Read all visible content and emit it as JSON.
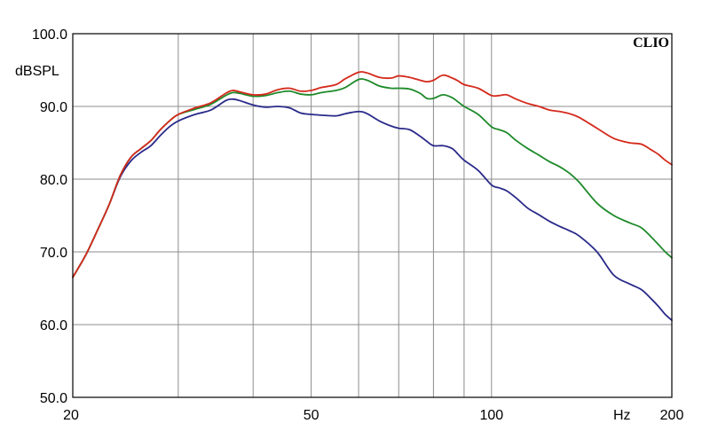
{
  "chart_data": {
    "type": "line",
    "brand": "CLIO",
    "ylabel": "dBSPL",
    "xunit": "Hz",
    "xscale": "log",
    "xlim": [
      20,
      200
    ],
    "ylim": [
      50,
      100
    ],
    "grid": true,
    "x_ticks": [
      20,
      50,
      100,
      200
    ],
    "x_tick_labels": [
      "20",
      "50",
      "100",
      "200"
    ],
    "y_ticks": [
      50,
      60,
      70,
      80,
      90,
      100
    ],
    "y_tick_labels": [
      "50.0",
      "60.0",
      "70.0",
      "80.0",
      "90.0",
      "100.0"
    ],
    "x_grid": [
      30,
      40,
      50,
      60,
      70,
      80,
      90,
      100,
      200
    ],
    "series": [
      {
        "color": "#d42a1c",
        "points": [
          [
            20,
            66.5
          ],
          [
            21,
            69.5
          ],
          [
            22,
            73
          ],
          [
            23,
            76.5
          ],
          [
            24,
            80.5
          ],
          [
            25,
            83
          ],
          [
            26,
            84.2
          ],
          [
            27,
            85.3
          ],
          [
            28,
            86.8
          ],
          [
            29,
            88
          ],
          [
            30,
            88.9
          ],
          [
            32,
            89.8
          ],
          [
            34,
            90.5
          ],
          [
            36,
            91.8
          ],
          [
            37,
            92.2
          ],
          [
            38,
            92
          ],
          [
            40,
            91.6
          ],
          [
            42,
            91.7
          ],
          [
            44,
            92.3
          ],
          [
            46,
            92.5
          ],
          [
            48,
            92.1
          ],
          [
            50,
            92.2
          ],
          [
            52,
            92.6
          ],
          [
            55,
            93
          ],
          [
            57,
            93.8
          ],
          [
            60,
            94.7
          ],
          [
            62,
            94.6
          ],
          [
            65,
            94
          ],
          [
            68,
            93.9
          ],
          [
            70,
            94.2
          ],
          [
            73,
            94
          ],
          [
            76,
            93.6
          ],
          [
            78,
            93.4
          ],
          [
            80,
            93.6
          ],
          [
            83,
            94.3
          ],
          [
            86,
            93.9
          ],
          [
            88,
            93.5
          ],
          [
            90,
            93
          ],
          [
            95,
            92.5
          ],
          [
            100,
            91.5
          ],
          [
            103,
            91.5
          ],
          [
            106,
            91.6
          ],
          [
            110,
            91
          ],
          [
            115,
            90.4
          ],
          [
            120,
            90
          ],
          [
            125,
            89.5
          ],
          [
            130,
            89.3
          ],
          [
            135,
            89
          ],
          [
            140,
            88.5
          ],
          [
            150,
            87
          ],
          [
            160,
            85.6
          ],
          [
            170,
            85
          ],
          [
            178,
            84.8
          ],
          [
            185,
            84
          ],
          [
            190,
            83.4
          ],
          [
            195,
            82.6
          ],
          [
            200,
            82
          ]
        ]
      },
      {
        "color": "#1e8a2a",
        "points": [
          [
            20,
            66.5
          ],
          [
            21,
            69.5
          ],
          [
            22,
            73
          ],
          [
            23,
            76.5
          ],
          [
            24,
            80.5
          ],
          [
            25,
            83
          ],
          [
            26,
            84.2
          ],
          [
            27,
            85.3
          ],
          [
            28,
            86.8
          ],
          [
            29,
            88
          ],
          [
            30,
            88.9
          ],
          [
            32,
            89.6
          ],
          [
            34,
            90.3
          ],
          [
            36,
            91.5
          ],
          [
            37,
            91.9
          ],
          [
            38,
            91.8
          ],
          [
            40,
            91.4
          ],
          [
            42,
            91.5
          ],
          [
            44,
            91.9
          ],
          [
            46,
            92.1
          ],
          [
            48,
            91.7
          ],
          [
            50,
            91.6
          ],
          [
            52,
            91.9
          ],
          [
            55,
            92.2
          ],
          [
            57,
            92.6
          ],
          [
            60,
            93.7
          ],
          [
            62,
            93.6
          ],
          [
            65,
            92.8
          ],
          [
            68,
            92.5
          ],
          [
            70,
            92.5
          ],
          [
            73,
            92.4
          ],
          [
            76,
            91.8
          ],
          [
            78,
            91.1
          ],
          [
            80,
            91.1
          ],
          [
            83,
            91.6
          ],
          [
            86,
            91.2
          ],
          [
            88,
            90.6
          ],
          [
            90,
            90
          ],
          [
            95,
            88.9
          ],
          [
            100,
            87.2
          ],
          [
            103,
            86.8
          ],
          [
            106,
            86.4
          ],
          [
            110,
            85.3
          ],
          [
            115,
            84.2
          ],
          [
            120,
            83.3
          ],
          [
            125,
            82.4
          ],
          [
            130,
            81.7
          ],
          [
            135,
            80.8
          ],
          [
            140,
            79.6
          ],
          [
            150,
            76.7
          ],
          [
            160,
            75
          ],
          [
            170,
            74
          ],
          [
            178,
            73.3
          ],
          [
            185,
            72
          ],
          [
            190,
            71
          ],
          [
            195,
            70
          ],
          [
            200,
            69.2
          ]
        ]
      },
      {
        "color": "#2a2a8a",
        "points": [
          [
            20,
            66.5
          ],
          [
            21,
            69.5
          ],
          [
            22,
            73
          ],
          [
            23,
            76.5
          ],
          [
            24,
            80.3
          ],
          [
            25,
            82.5
          ],
          [
            26,
            83.7
          ],
          [
            27,
            84.6
          ],
          [
            28,
            86
          ],
          [
            29,
            87.2
          ],
          [
            30,
            88
          ],
          [
            32,
            88.9
          ],
          [
            34,
            89.5
          ],
          [
            36,
            90.8
          ],
          [
            37,
            91
          ],
          [
            38,
            90.8
          ],
          [
            40,
            90.2
          ],
          [
            42,
            89.9
          ],
          [
            44,
            90
          ],
          [
            46,
            89.8
          ],
          [
            48,
            89.1
          ],
          [
            50,
            88.9
          ],
          [
            52,
            88.8
          ],
          [
            55,
            88.7
          ],
          [
            57,
            89
          ],
          [
            60,
            89.3
          ],
          [
            62,
            89
          ],
          [
            65,
            88
          ],
          [
            68,
            87.3
          ],
          [
            70,
            87
          ],
          [
            73,
            86.8
          ],
          [
            76,
            85.9
          ],
          [
            78,
            85.2
          ],
          [
            80,
            84.6
          ],
          [
            83,
            84.6
          ],
          [
            86,
            84.2
          ],
          [
            88,
            83.4
          ],
          [
            90,
            82.6
          ],
          [
            95,
            81.2
          ],
          [
            100,
            79.2
          ],
          [
            103,
            78.8
          ],
          [
            106,
            78.4
          ],
          [
            110,
            77.4
          ],
          [
            115,
            76
          ],
          [
            120,
            75.1
          ],
          [
            125,
            74.2
          ],
          [
            130,
            73.5
          ],
          [
            135,
            72.9
          ],
          [
            140,
            72.2
          ],
          [
            150,
            70
          ],
          [
            160,
            66.8
          ],
          [
            170,
            65.6
          ],
          [
            178,
            64.8
          ],
          [
            185,
            63.5
          ],
          [
            190,
            62.5
          ],
          [
            195,
            61.4
          ],
          [
            200,
            60.6
          ]
        ]
      }
    ]
  }
}
